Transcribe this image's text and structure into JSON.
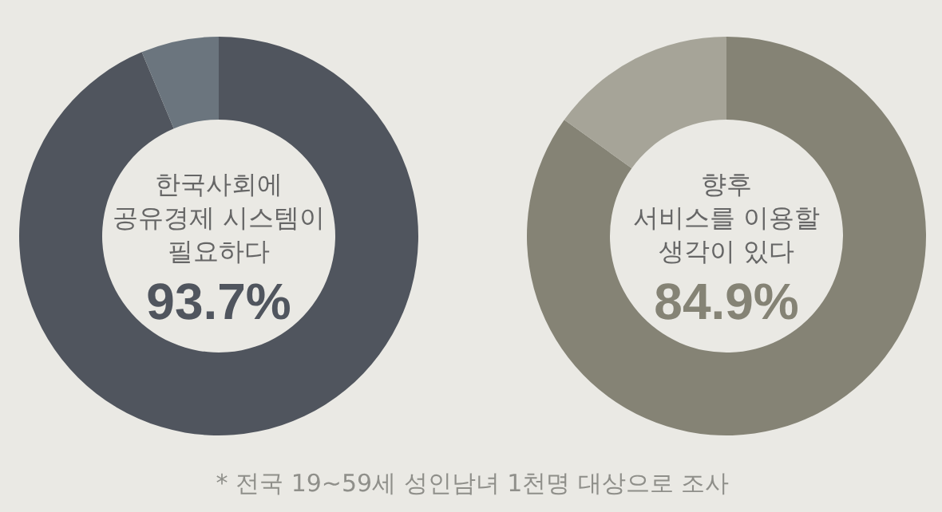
{
  "chart_data": [
    {
      "type": "donut",
      "title": "한국사회에\n공유경제 시스템이\n필요하다",
      "categories": [
        null,
        null
      ],
      "values": [
        93.7,
        6.3
      ],
      "colors": [
        "#50555e",
        "#6b757e"
      ],
      "value_labels": [
        "93.7%",
        null
      ],
      "annotations": [
        "* 전국 19~59세 성인남녀 1천명 대상으로 조사"
      ]
    },
    {
      "type": "donut",
      "title": "향후\n서비스를 이용할\n생각이 있다",
      "categories": [
        null,
        null
      ],
      "values": [
        84.9,
        15.1
      ],
      "colors": [
        "#858375",
        "#a6a498"
      ],
      "value_labels": [
        "84.9%",
        null
      ]
    }
  ]
}
